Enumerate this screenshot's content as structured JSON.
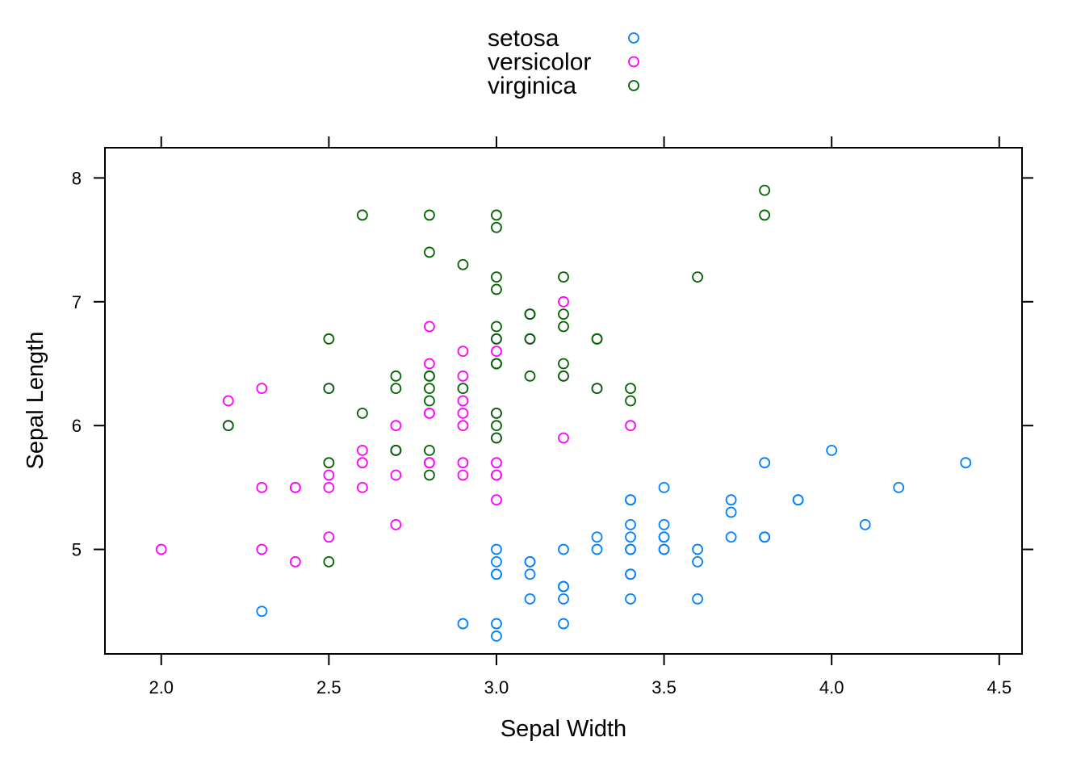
{
  "chart_data": {
    "type": "scatter",
    "title": "",
    "xlabel": "Sepal Width",
    "ylabel": "Sepal Length",
    "xlim": [
      1.832,
      4.568
    ],
    "ylim": [
      4.156,
      8.244
    ],
    "x_ticks": [
      "2.0",
      "2.5",
      "3.0",
      "3.5",
      "4.0",
      "4.5"
    ],
    "y_ticks": [
      "5",
      "6",
      "7",
      "8"
    ],
    "grid": false,
    "legend_position": "top-center",
    "series": [
      {
        "name": "setosa",
        "color": "#0080ff",
        "x": [
          3.5,
          3.0,
          3.2,
          3.1,
          3.6,
          3.9,
          3.4,
          3.4,
          2.9,
          3.1,
          3.7,
          3.4,
          3.0,
          3.0,
          4.0,
          4.4,
          3.9,
          3.5,
          3.8,
          3.8,
          3.4,
          3.7,
          3.6,
          3.3,
          3.4,
          3.0,
          3.4,
          3.5,
          3.4,
          3.2,
          3.1,
          3.4,
          4.1,
          4.2,
          3.1,
          3.2,
          3.5,
          3.6,
          3.0,
          3.4,
          3.5,
          2.3,
          3.2,
          3.5,
          3.8,
          3.0,
          3.8,
          3.2,
          3.7,
          3.3
        ],
        "y": [
          5.1,
          4.9,
          4.7,
          4.6,
          5.0,
          5.4,
          4.6,
          5.0,
          4.4,
          4.9,
          5.4,
          4.8,
          4.8,
          4.3,
          5.8,
          5.7,
          5.4,
          5.1,
          5.7,
          5.1,
          5.4,
          5.1,
          4.6,
          5.1,
          4.8,
          5.0,
          5.0,
          5.2,
          5.2,
          4.7,
          4.8,
          5.4,
          5.2,
          5.5,
          4.9,
          5.0,
          5.5,
          4.9,
          4.4,
          5.1,
          5.0,
          4.5,
          4.4,
          5.0,
          5.1,
          4.8,
          5.1,
          4.6,
          5.3,
          5.0
        ]
      },
      {
        "name": "versicolor",
        "color": "#ff00ff",
        "x": [
          3.2,
          3.2,
          3.1,
          2.3,
          2.8,
          2.8,
          3.3,
          2.4,
          2.9,
          2.7,
          2.0,
          3.0,
          2.2,
          2.9,
          2.9,
          3.1,
          3.0,
          2.7,
          2.2,
          2.5,
          3.2,
          2.8,
          2.5,
          2.8,
          2.9,
          3.0,
          2.8,
          3.0,
          2.9,
          2.6,
          2.4,
          2.4,
          2.7,
          2.7,
          3.0,
          3.4,
          3.1,
          2.3,
          3.0,
          2.5,
          2.6,
          3.0,
          2.6,
          2.3,
          2.7,
          3.0,
          2.9,
          2.9,
          2.5,
          2.8
        ],
        "y": [
          7.0,
          6.4,
          6.9,
          5.5,
          6.5,
          5.7,
          6.3,
          4.9,
          6.6,
          5.2,
          5.0,
          5.9,
          6.0,
          6.1,
          5.6,
          6.7,
          5.6,
          5.8,
          6.2,
          5.6,
          5.9,
          6.1,
          6.3,
          6.1,
          6.4,
          6.6,
          6.8,
          6.7,
          6.0,
          5.7,
          5.5,
          5.5,
          5.8,
          6.0,
          5.4,
          6.0,
          6.7,
          6.3,
          5.6,
          5.5,
          5.5,
          6.1,
          5.8,
          5.0,
          5.6,
          5.7,
          5.7,
          6.2,
          5.1,
          5.7
        ]
      },
      {
        "name": "virginica",
        "color": "#006400",
        "x": [
          3.3,
          2.7,
          3.0,
          2.9,
          3.0,
          3.0,
          2.5,
          2.9,
          2.5,
          3.6,
          3.2,
          2.7,
          3.0,
          2.5,
          2.8,
          3.2,
          3.0,
          3.8,
          2.6,
          2.2,
          3.2,
          2.8,
          2.8,
          2.7,
          3.3,
          3.2,
          2.8,
          3.0,
          2.8,
          3.0,
          2.8,
          3.8,
          2.8,
          2.8,
          2.6,
          3.0,
          3.4,
          3.1,
          3.0,
          3.1,
          3.1,
          3.1,
          2.7,
          3.2,
          3.3,
          3.0,
          2.5,
          3.0,
          3.4,
          3.0
        ],
        "y": [
          6.3,
          5.8,
          7.1,
          6.3,
          6.5,
          7.6,
          4.9,
          7.3,
          6.7,
          7.2,
          6.5,
          6.4,
          6.8,
          5.7,
          5.8,
          6.4,
          6.5,
          7.7,
          7.7,
          6.0,
          6.9,
          5.6,
          7.7,
          6.3,
          6.7,
          7.2,
          6.2,
          6.1,
          6.4,
          7.2,
          7.4,
          7.9,
          6.4,
          6.3,
          6.1,
          7.7,
          6.3,
          6.4,
          6.0,
          6.9,
          6.7,
          6.9,
          5.8,
          6.8,
          6.7,
          6.7,
          6.3,
          6.5,
          6.2,
          5.9
        ]
      }
    ]
  }
}
